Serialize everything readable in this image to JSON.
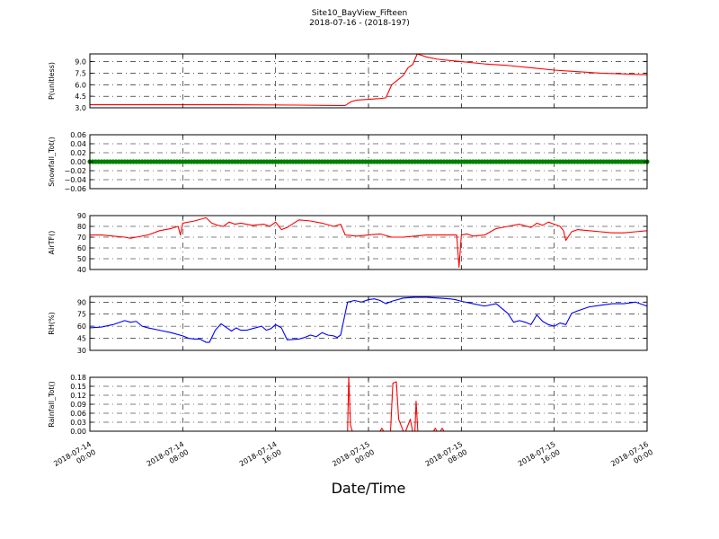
{
  "figure": {
    "title_line1": "Site10_BayView_Fifteen",
    "title_line2": "2018-07-16 - (2018-197)",
    "xlabel": "Date/Time",
    "x_tick_labels": [
      [
        "2018-07-14",
        "00:00"
      ],
      [
        "2018-07-14",
        "08:00"
      ],
      [
        "2018-07-14",
        "16:00"
      ],
      [
        "2018-07-15",
        "00:00"
      ],
      [
        "2018-07-15",
        "08:00"
      ],
      [
        "2018-07-15",
        "16:00"
      ],
      [
        "2018-07-16",
        "00:00"
      ]
    ]
  },
  "chart_data": [
    {
      "type": "line",
      "ylabel": "P(unitless)",
      "ylim": [
        3.0,
        10.0
      ],
      "yticks": [
        "3.0",
        "4.5",
        "6.0",
        "7.5",
        "9.0"
      ],
      "xlim_hours": [
        0,
        48
      ],
      "grid": true,
      "color": "#ff0000",
      "x": [
        0,
        6,
        12,
        18,
        21,
        22.0,
        22.5,
        23,
        24,
        25,
        25.5,
        26,
        26.5,
        27,
        27.4,
        27.8,
        28.2,
        29,
        30,
        32,
        34,
        36,
        38,
        40,
        42,
        44,
        46,
        48
      ],
      "y": [
        3.4,
        3.4,
        3.4,
        3.35,
        3.3,
        3.3,
        3.8,
        4.0,
        4.1,
        4.2,
        4.3,
        6.0,
        6.6,
        7.2,
        8.2,
        8.6,
        10.0,
        9.6,
        9.3,
        9.0,
        8.7,
        8.5,
        8.2,
        7.9,
        7.7,
        7.5,
        7.4,
        7.3
      ]
    },
    {
      "type": "scatter",
      "ylabel": "Snowfall_Tot()",
      "ylim": [
        -0.06,
        0.06
      ],
      "yticks": [
        "−0.06",
        "−0.04",
        "−0.02",
        "0.00",
        "0.02",
        "0.04",
        "0.06"
      ],
      "grid": true,
      "color": "#008000",
      "x_start": 0,
      "x_end": 48,
      "x_step": 0.25,
      "constant_value": 0.0
    },
    {
      "type": "line",
      "ylabel": "AirTF()",
      "ylim": [
        40,
        90
      ],
      "yticks": [
        "40",
        "50",
        "60",
        "70",
        "80",
        "90"
      ],
      "grid": true,
      "color": "#ff0000",
      "x": [
        0,
        1,
        2,
        3,
        3.5,
        4,
        5,
        6,
        7,
        7.6,
        7.8,
        8.0,
        9,
        10,
        10.5,
        11,
        11.5,
        12,
        12.5,
        13,
        14,
        15,
        15.5,
        16,
        16.5,
        17,
        18,
        19,
        20,
        21,
        21.6,
        22,
        23,
        24,
        25,
        26,
        27,
        28,
        29,
        30,
        31,
        31.6,
        31.8,
        32.0,
        32.5,
        33,
        34,
        35,
        36,
        37,
        38,
        38.5,
        39,
        39.5,
        40,
        40.5,
        40.8,
        41,
        41.5,
        42,
        43,
        44,
        45,
        46,
        47,
        48
      ],
      "y": [
        72,
        72,
        71,
        70,
        69,
        70,
        72,
        76,
        78,
        80,
        72,
        83,
        85,
        88,
        83,
        81,
        80,
        84,
        82,
        83,
        81,
        82,
        80,
        84,
        77,
        79,
        86,
        85,
        83,
        80,
        82,
        72,
        71,
        72,
        73,
        70,
        70,
        71,
        72,
        72,
        72,
        72,
        42,
        72,
        73,
        71,
        72,
        78,
        80,
        82,
        79,
        83,
        81,
        84,
        82,
        80,
        76,
        67,
        75,
        77,
        76,
        75,
        74,
        74,
        75,
        76
      ]
    },
    {
      "type": "line",
      "ylabel": "RH(%)",
      "ylim": [
        30,
        97
      ],
      "yticks": [
        "30",
        "45",
        "60",
        "75",
        "90"
      ],
      "grid": true,
      "color": "#0000ff",
      "x": [
        0,
        1,
        2,
        3,
        3.5,
        4,
        4.5,
        5,
        6,
        7,
        8,
        8.5,
        9,
        9.5,
        10,
        10.3,
        10.8,
        11.3,
        11.8,
        12.2,
        12.6,
        13,
        13.5,
        14,
        14.8,
        15.2,
        15.6,
        16.0,
        16.5,
        17,
        18,
        18.5,
        19,
        19.5,
        20,
        20.5,
        21,
        21.3,
        21.6,
        22.2,
        22.8,
        23.4,
        24,
        24.5,
        25,
        25.5,
        26,
        27,
        28,
        29,
        30,
        31,
        31.5,
        32,
        33,
        34,
        35,
        35.5,
        36,
        36.5,
        37,
        37.5,
        38,
        38.5,
        39,
        39.5,
        40,
        40.5,
        41,
        41.5,
        42,
        43,
        44,
        45,
        46,
        47,
        48
      ],
      "y": [
        58,
        59,
        62,
        67,
        65,
        66,
        60,
        58,
        55,
        52,
        48,
        45,
        44,
        44,
        40,
        40,
        55,
        63,
        58,
        54,
        58,
        55,
        55,
        57,
        60,
        55,
        57,
        62,
        58,
        43,
        44,
        46,
        49,
        47,
        52,
        49,
        48,
        46,
        49,
        90,
        92,
        90,
        93,
        94,
        92,
        88,
        91,
        95,
        96,
        96,
        95,
        94,
        93,
        91,
        88,
        85,
        88,
        82,
        76,
        65,
        67,
        65,
        62,
        74,
        66,
        62,
        60,
        64,
        62,
        76,
        79,
        84,
        86,
        88,
        88,
        90,
        85
      ]
    },
    {
      "type": "line",
      "ylabel": "Rainfall_Tot()",
      "ylim": [
        0.0,
        0.18
      ],
      "yticks": [
        "0.00",
        "0.03",
        "0.06",
        "0.09",
        "0.12",
        "0.15",
        "0.18"
      ],
      "grid": true,
      "color": "#ff0000",
      "x": [
        0,
        22.2,
        22.3,
        22.45,
        22.6,
        22.8,
        23.0,
        25.0,
        25.15,
        25.3,
        25.9,
        26.1,
        26.4,
        26.6,
        26.8,
        27.0,
        27.2,
        27.6,
        27.8,
        28.0,
        28.1,
        28.25,
        28.4,
        29.6,
        29.75,
        29.9,
        30.2,
        30.35,
        30.5,
        48
      ],
      "y": [
        0,
        0,
        0.18,
        0.02,
        0.0,
        0.0,
        0.0,
        0.0,
        0.01,
        0.0,
        0.0,
        0.16,
        0.165,
        0.04,
        0.02,
        0.0,
        0.0,
        0.04,
        0.0,
        0.0,
        0.1,
        0.0,
        0.0,
        0.0,
        0.01,
        0.0,
        0.0,
        0.01,
        0.0,
        0.0
      ]
    }
  ]
}
